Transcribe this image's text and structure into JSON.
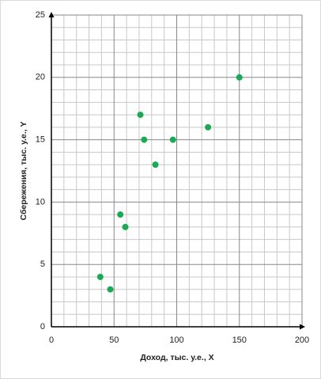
{
  "chart_data": {
    "type": "scatter",
    "x_label": "Доход, тыс. у.е., X",
    "y_label": "Сбережения, тыс. у.е., Y",
    "x": [
      39,
      47,
      55,
      59,
      71,
      74,
      83,
      97,
      125,
      150
    ],
    "values": [
      4,
      3,
      9,
      8,
      17,
      15,
      13,
      15,
      16,
      20
    ],
    "color": "#1aaa55",
    "xlim": [
      0,
      200
    ],
    "xticks": [
      0,
      50,
      100,
      150,
      200
    ],
    "ylim": [
      0,
      25
    ],
    "yticks": [
      0,
      5,
      10,
      15,
      20,
      25
    ],
    "grid": true,
    "minor_grid_divisions": 5
  }
}
